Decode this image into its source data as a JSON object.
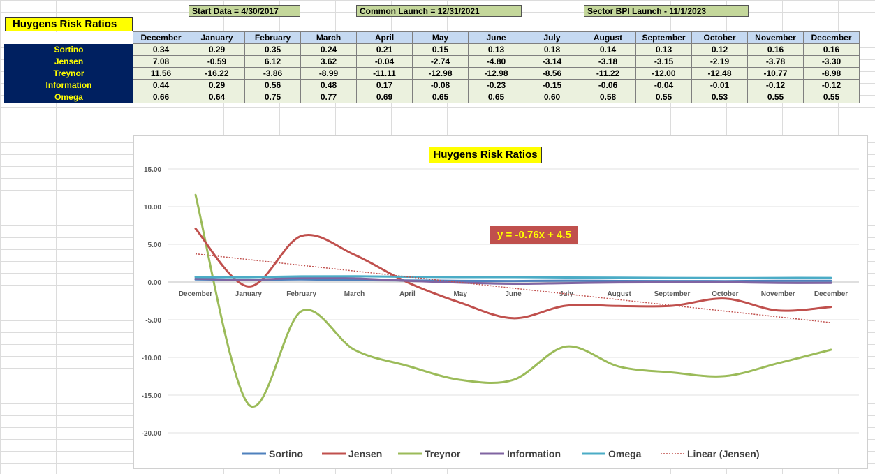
{
  "banners": {
    "start": "Start Data = 4/30/2017",
    "common": "Common Launch = 12/31/2021",
    "sector": "Sector BPI Launch - 11/1/2023"
  },
  "sheet_title": "Huygens Risk Ratios",
  "table": {
    "months": [
      "December",
      "January",
      "February",
      "March",
      "April",
      "May",
      "June",
      "July",
      "August",
      "September",
      "October",
      "November",
      "December"
    ],
    "rows": [
      {
        "label": "Sortino",
        "values": [
          "0.34",
          "0.29",
          "0.35",
          "0.24",
          "0.21",
          "0.15",
          "0.13",
          "0.18",
          "0.14",
          "0.13",
          "0.12",
          "0.16",
          "0.16"
        ]
      },
      {
        "label": "Jensen",
        "values": [
          "7.08",
          "-0.59",
          "6.12",
          "3.62",
          "-0.04",
          "-2.74",
          "-4.80",
          "-3.14",
          "-3.18",
          "-3.15",
          "-2.19",
          "-3.78",
          "-3.30"
        ]
      },
      {
        "label": "Treynor",
        "values": [
          "11.56",
          "-16.22",
          "-3.86",
          "-8.99",
          "-11.11",
          "-12.98",
          "-12.98",
          "-8.56",
          "-11.22",
          "-12.00",
          "-12.48",
          "-10.77",
          "-8.98"
        ]
      },
      {
        "label": "Information",
        "values": [
          "0.44",
          "0.29",
          "0.56",
          "0.48",
          "0.17",
          "-0.08",
          "-0.23",
          "-0.15",
          "-0.06",
          "-0.04",
          "-0.01",
          "-0.12",
          "-0.12"
        ]
      },
      {
        "label": "Omega",
        "values": [
          "0.66",
          "0.64",
          "0.75",
          "0.77",
          "0.69",
          "0.65",
          "0.65",
          "0.60",
          "0.58",
          "0.55",
          "0.53",
          "0.55",
          "0.55"
        ]
      }
    ]
  },
  "chart_data": {
    "type": "line",
    "title": "Huygens Risk Ratios",
    "categories": [
      "December",
      "January",
      "February",
      "March",
      "April",
      "May",
      "June",
      "July",
      "August",
      "September",
      "October",
      "November",
      "December"
    ],
    "ylim": [
      -20,
      15
    ],
    "yticks": [
      "15.00",
      "10.00",
      "5.00",
      "0.00",
      "-5.00",
      "-10.00",
      "-15.00",
      "-20.00"
    ],
    "grid": true,
    "legend": "bottom",
    "series": [
      {
        "name": "Sortino",
        "color": "#4f81bd",
        "values": [
          0.34,
          0.29,
          0.35,
          0.24,
          0.21,
          0.15,
          0.13,
          0.18,
          0.14,
          0.13,
          0.12,
          0.16,
          0.16
        ]
      },
      {
        "name": "Jensen",
        "color": "#c0504d",
        "values": [
          7.08,
          -0.59,
          6.12,
          3.62,
          -0.04,
          -2.74,
          -4.8,
          -3.14,
          -3.18,
          -3.15,
          -2.19,
          -3.78,
          -3.3
        ]
      },
      {
        "name": "Treynor",
        "color": "#9bbb59",
        "values": [
          11.56,
          -16.22,
          -3.86,
          -8.99,
          -11.11,
          -12.98,
          -12.98,
          -8.56,
          -11.22,
          -12.0,
          -12.48,
          -10.77,
          -8.98
        ]
      },
      {
        "name": "Information",
        "color": "#8064a2",
        "values": [
          0.44,
          0.29,
          0.56,
          0.48,
          0.17,
          -0.08,
          -0.23,
          -0.15,
          -0.06,
          -0.04,
          -0.01,
          -0.12,
          -0.12
        ]
      },
      {
        "name": "Omega",
        "color": "#4bacc6",
        "values": [
          0.66,
          0.64,
          0.75,
          0.77,
          0.69,
          0.65,
          0.65,
          0.6,
          0.58,
          0.55,
          0.53,
          0.55,
          0.55
        ]
      }
    ],
    "trendline": {
      "name": "Linear (Jensen)",
      "color": "#c0504d",
      "slope": -0.76,
      "intercept": 4.5,
      "equation": "y = -0.76x + 4.5"
    }
  }
}
